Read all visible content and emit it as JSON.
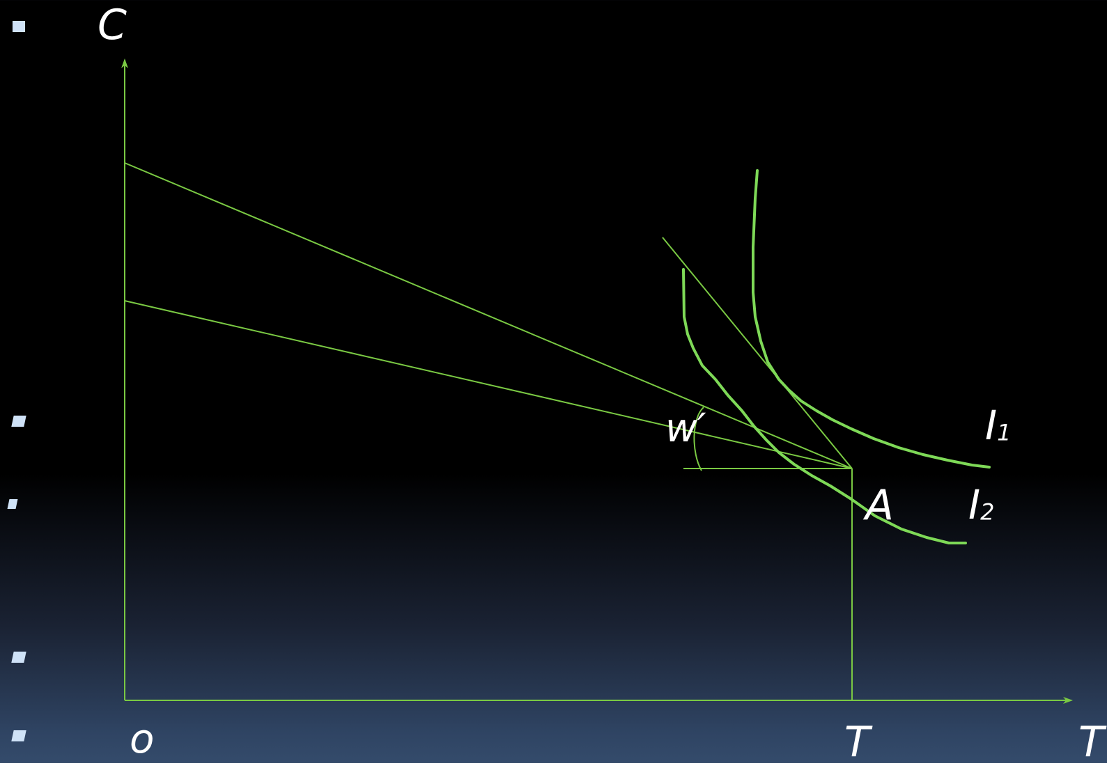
{
  "labels": {
    "y_axis": "C",
    "origin": "o",
    "x_axis_tick": "T",
    "x_axis_end": "T",
    "point": "A",
    "wage": "w′",
    "curve_i1_base": "I",
    "curve_i1_sub": "1",
    "curve_i2_base": "I",
    "curve_i2_sub": "2"
  },
  "colors": {
    "line": "#7ac943",
    "curve": "#7ed957",
    "text": "#ffffff",
    "bullet": "#cfe2f7"
  },
  "icons": [
    "square-bullet",
    "square-bullet",
    "square-bullet",
    "square-bullet",
    "square-bullet"
  ]
}
